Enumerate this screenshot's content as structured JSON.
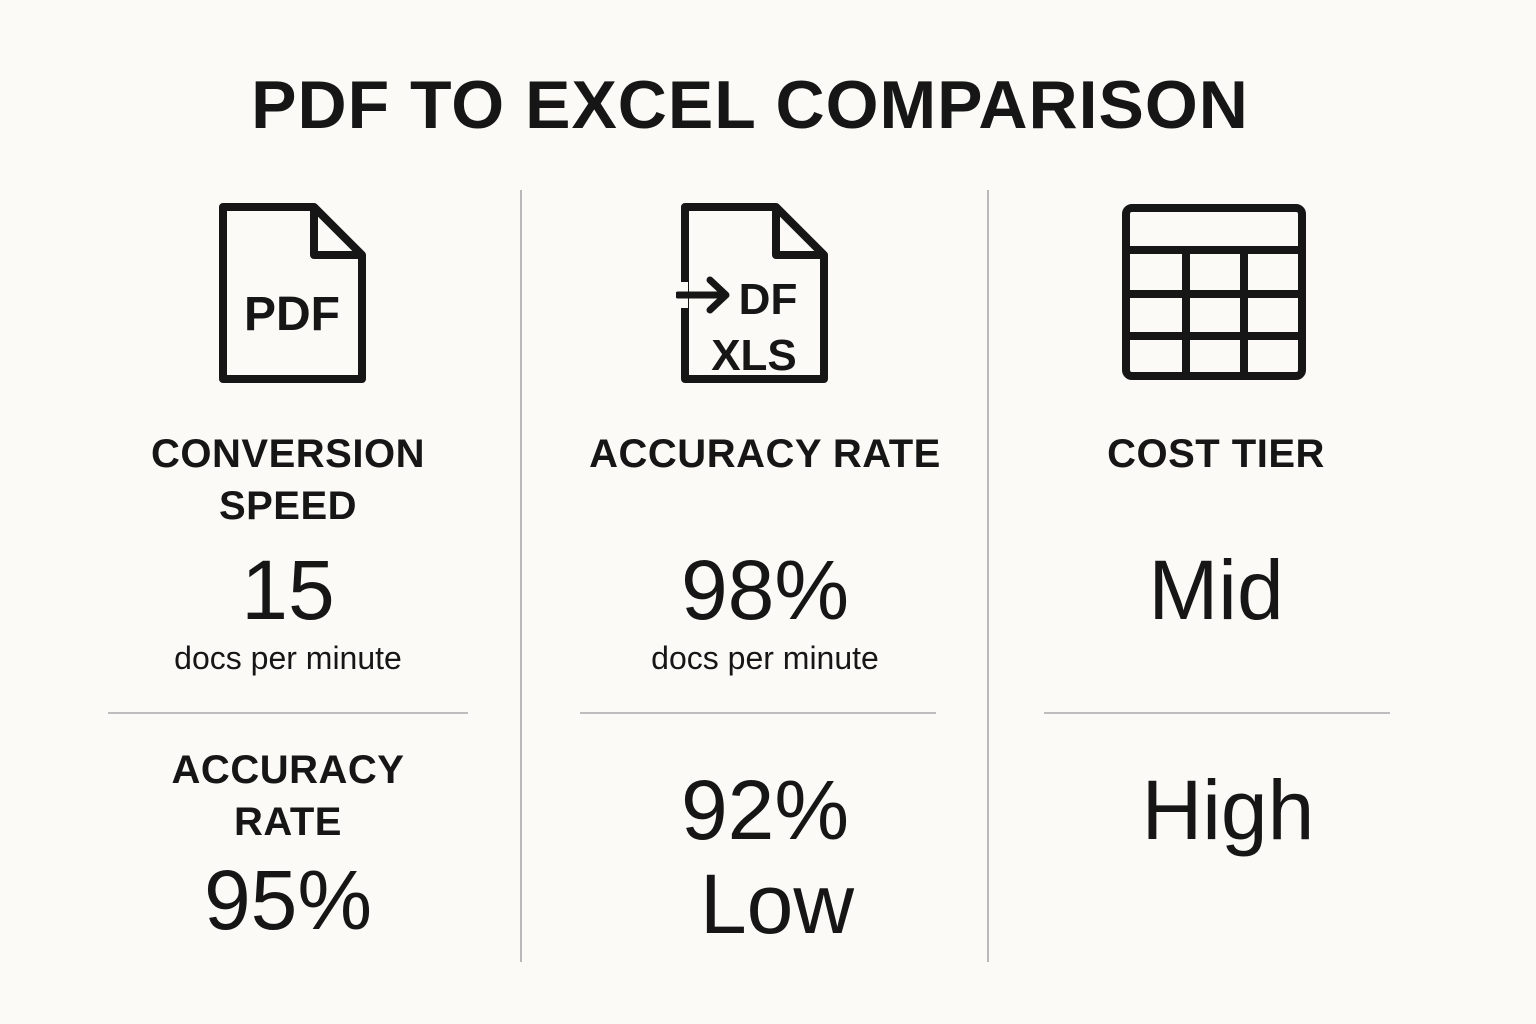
{
  "title": "PDF TO EXCEL COMPARISON",
  "columns": [
    {
      "icon": "pdf-file-icon",
      "icon_text": "PDF",
      "label_line1": "CONVERSION",
      "label_line2": "SPEED",
      "value": "15",
      "unit": "docs per minute",
      "lower_label_line1": "ACCURACY",
      "lower_label_line2": "RATE",
      "lower_value": "95%"
    },
    {
      "icon": "pdf-to-xls-icon",
      "icon_text_top": "DF",
      "icon_text_bottom": "XLS",
      "label": "ACCURACY RATE",
      "value": "98%",
      "unit": "docs per minute",
      "lower_value": "92%",
      "lower_value2": "Low"
    },
    {
      "icon": "spreadsheet-grid-icon",
      "label": "COST TIER",
      "value": "Mid",
      "lower_value": "High"
    }
  ]
}
